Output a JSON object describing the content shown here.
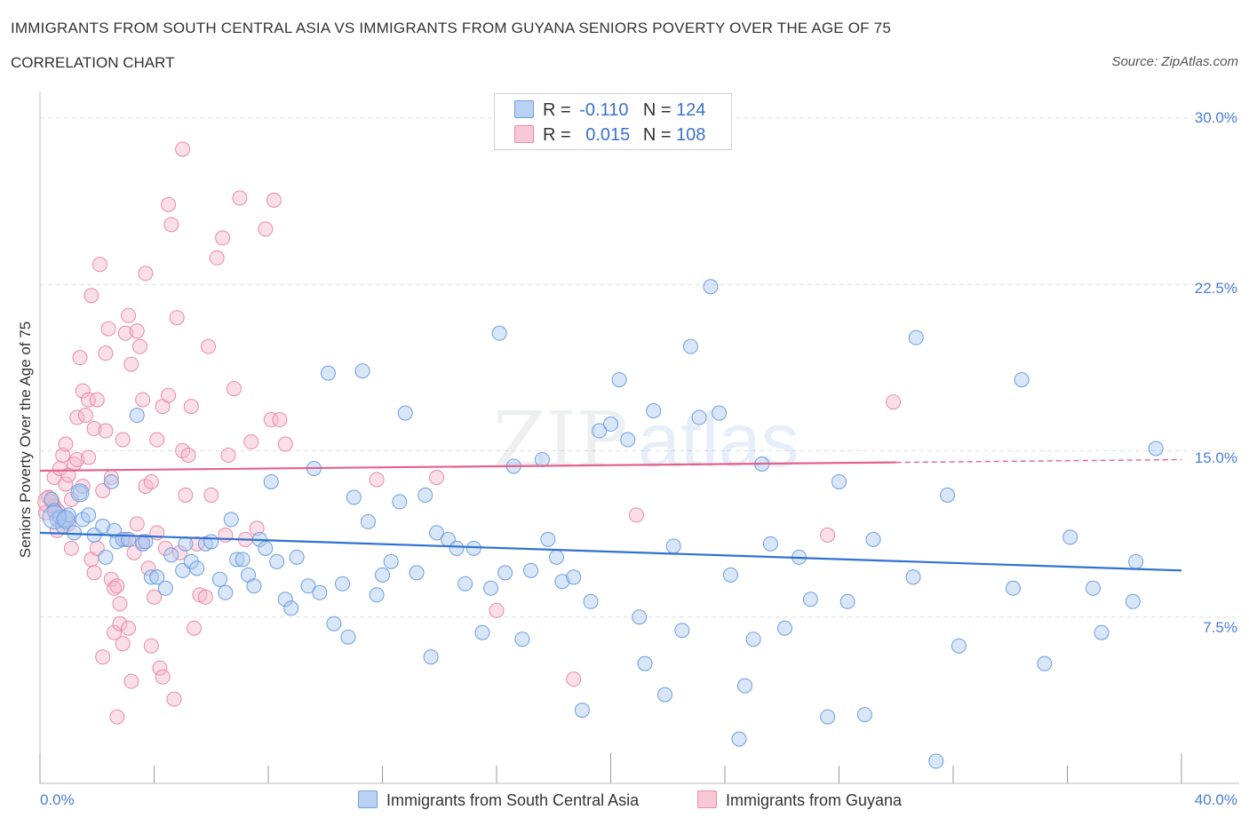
{
  "header": {
    "title": "IMMIGRANTS FROM SOUTH CENTRAL ASIA VS IMMIGRANTS FROM GUYANA SENIORS POVERTY OVER THE AGE OF 75",
    "subtitle": "CORRELATION CHART",
    "source": "Source: ZipAtlas.com"
  },
  "legend": {
    "rows": [
      {
        "r_label": "R =",
        "r_value": "-0.110",
        "n_label": "N =",
        "n_value": "124"
      },
      {
        "r_label": "R =",
        "r_value": "0.015",
        "n_label": "N =",
        "n_value": "108"
      }
    ],
    "bottom": [
      "Immigrants from South Central Asia",
      "Immigrants from Guyana"
    ]
  },
  "axes": {
    "ylabel": "Seniors Poverty Over the Age of 75",
    "yticks": [
      "30.0%",
      "22.5%",
      "15.0%",
      "7.5%"
    ],
    "xticks": [
      "0.0%",
      "40.0%"
    ]
  },
  "watermark": {
    "part1": "ZIP",
    "part2": "atlas"
  },
  "colors": {
    "blue_fill": "#a9c8f0",
    "blue_stroke": "#6d9fe0",
    "blue_line": "#2f72d0",
    "pink_fill": "#f5b8cb",
    "pink_stroke": "#ea8aa8",
    "pink_line": "#e3628e",
    "axis_text": "#4a7fd4",
    "grid": "#e0e0e0"
  },
  "chart_data": {
    "type": "scatter",
    "title": "IMMIGRANTS FROM SOUTH CENTRAL ASIA VS IMMIGRANTS FROM GUYANA SENIORS POVERTY OVER THE AGE OF 75",
    "xlabel": "",
    "ylabel": "Seniors Poverty Over the Age of 75",
    "xlim": [
      0,
      40
    ],
    "ylim": [
      0,
      30
    ],
    "grid": true,
    "legend_position": "top-center",
    "series": [
      {
        "name": "Immigrants from South Central Asia",
        "R": -0.11,
        "N": 124,
        "trend": {
          "x": [
            0,
            40
          ],
          "y": [
            11.3,
            9.6
          ]
        },
        "points": [
          [
            0.4,
            12.8
          ],
          [
            0.5,
            12.3
          ],
          [
            0.6,
            11.9
          ],
          [
            0.7,
            12.0
          ],
          [
            0.8,
            11.6
          ],
          [
            0.9,
            11.9
          ],
          [
            1.0,
            12.1
          ],
          [
            1.2,
            11.3
          ],
          [
            1.4,
            13.1
          ],
          [
            1.5,
            11.9
          ],
          [
            1.7,
            12.1
          ],
          [
            1.9,
            11.2
          ],
          [
            2.2,
            11.6
          ],
          [
            2.3,
            10.2
          ],
          [
            2.5,
            13.6
          ],
          [
            2.6,
            11.4
          ],
          [
            2.7,
            10.9
          ],
          [
            2.9,
            11.0
          ],
          [
            3.1,
            11.0
          ],
          [
            3.4,
            16.6
          ],
          [
            3.6,
            10.8
          ],
          [
            3.7,
            10.9
          ],
          [
            3.9,
            9.3
          ],
          [
            4.1,
            9.3
          ],
          [
            4.4,
            8.8
          ],
          [
            4.6,
            10.3
          ],
          [
            5.0,
            9.6
          ],
          [
            5.1,
            10.8
          ],
          [
            5.3,
            10.0
          ],
          [
            5.5,
            9.7
          ],
          [
            5.8,
            10.8
          ],
          [
            6.0,
            10.9
          ],
          [
            6.3,
            9.2
          ],
          [
            6.5,
            8.6
          ],
          [
            6.7,
            11.9
          ],
          [
            6.9,
            10.1
          ],
          [
            7.1,
            10.1
          ],
          [
            7.3,
            9.4
          ],
          [
            7.5,
            8.9
          ],
          [
            7.7,
            11.0
          ],
          [
            7.9,
            10.6
          ],
          [
            8.1,
            13.6
          ],
          [
            8.3,
            10.0
          ],
          [
            8.6,
            8.3
          ],
          [
            8.8,
            7.9
          ],
          [
            9.0,
            10.2
          ],
          [
            9.4,
            8.9
          ],
          [
            9.6,
            14.2
          ],
          [
            9.8,
            8.6
          ],
          [
            10.1,
            18.5
          ],
          [
            10.3,
            7.2
          ],
          [
            10.6,
            9.0
          ],
          [
            10.8,
            6.6
          ],
          [
            11.0,
            12.9
          ],
          [
            11.3,
            18.6
          ],
          [
            11.5,
            11.8
          ],
          [
            11.8,
            8.5
          ],
          [
            12.0,
            9.4
          ],
          [
            12.3,
            10.0
          ],
          [
            12.6,
            12.7
          ],
          [
            12.8,
            16.7
          ],
          [
            13.2,
            9.5
          ],
          [
            13.5,
            13.0
          ],
          [
            13.7,
            5.7
          ],
          [
            13.9,
            11.3
          ],
          [
            14.3,
            11.0
          ],
          [
            14.6,
            10.6
          ],
          [
            14.9,
            9.0
          ],
          [
            15.2,
            10.6
          ],
          [
            15.5,
            6.8
          ],
          [
            15.8,
            8.8
          ],
          [
            16.1,
            20.3
          ],
          [
            16.3,
            9.5
          ],
          [
            16.6,
            14.3
          ],
          [
            16.9,
            6.5
          ],
          [
            17.2,
            9.6
          ],
          [
            17.6,
            14.6
          ],
          [
            17.8,
            11.0
          ],
          [
            18.1,
            10.2
          ],
          [
            18.3,
            9.1
          ],
          [
            18.7,
            9.3
          ],
          [
            19.0,
            3.3
          ],
          [
            19.3,
            8.2
          ],
          [
            19.6,
            15.9
          ],
          [
            20.0,
            16.2
          ],
          [
            20.3,
            18.2
          ],
          [
            20.6,
            15.5
          ],
          [
            21.0,
            7.5
          ],
          [
            21.2,
            5.4
          ],
          [
            21.5,
            16.8
          ],
          [
            21.9,
            4.0
          ],
          [
            22.2,
            10.7
          ],
          [
            22.5,
            6.9
          ],
          [
            22.8,
            19.7
          ],
          [
            23.1,
            16.5
          ],
          [
            23.5,
            22.4
          ],
          [
            23.8,
            16.7
          ],
          [
            24.2,
            9.4
          ],
          [
            24.5,
            2.0
          ],
          [
            24.7,
            4.4
          ],
          [
            25.0,
            6.5
          ],
          [
            25.3,
            14.4
          ],
          [
            25.6,
            10.8
          ],
          [
            26.1,
            7.0
          ],
          [
            26.6,
            10.2
          ],
          [
            27.0,
            8.3
          ],
          [
            27.6,
            3.0
          ],
          [
            28.0,
            13.6
          ],
          [
            28.3,
            8.2
          ],
          [
            28.9,
            3.1
          ],
          [
            29.2,
            11.0
          ],
          [
            30.6,
            9.3
          ],
          [
            30.7,
            20.1
          ],
          [
            31.4,
            1.0
          ],
          [
            31.8,
            13.0
          ],
          [
            32.2,
            6.2
          ],
          [
            34.1,
            8.8
          ],
          [
            34.4,
            18.2
          ],
          [
            35.2,
            5.4
          ],
          [
            36.1,
            11.1
          ],
          [
            36.9,
            8.8
          ],
          [
            37.2,
            6.8
          ],
          [
            38.3,
            8.2
          ],
          [
            38.4,
            10.0
          ],
          [
            39.1,
            15.1
          ]
        ]
      },
      {
        "name": "Immigrants from Guyana",
        "R": 0.015,
        "N": 108,
        "trend": {
          "x": [
            0,
            40
          ],
          "y": [
            14.1,
            14.6
          ],
          "solid_until_x": 30.0
        },
        "points": [
          [
            0.2,
            12.2
          ],
          [
            0.3,
            12.9
          ],
          [
            0.4,
            12.7
          ],
          [
            0.5,
            13.8
          ],
          [
            0.5,
            12.5
          ],
          [
            0.6,
            11.4
          ],
          [
            0.7,
            14.2
          ],
          [
            0.7,
            12.0
          ],
          [
            0.8,
            14.8
          ],
          [
            0.9,
            15.3
          ],
          [
            0.9,
            13.5
          ],
          [
            1.0,
            13.9
          ],
          [
            1.0,
            11.7
          ],
          [
            1.1,
            12.8
          ],
          [
            1.1,
            10.6
          ],
          [
            1.2,
            14.4
          ],
          [
            1.3,
            14.6
          ],
          [
            1.3,
            16.5
          ],
          [
            1.4,
            19.2
          ],
          [
            1.5,
            17.7
          ],
          [
            1.5,
            13.4
          ],
          [
            1.6,
            16.6
          ],
          [
            1.7,
            17.3
          ],
          [
            1.7,
            14.7
          ],
          [
            1.8,
            22.0
          ],
          [
            1.8,
            10.1
          ],
          [
            1.9,
            9.5
          ],
          [
            1.9,
            16.0
          ],
          [
            2.0,
            10.6
          ],
          [
            2.0,
            17.3
          ],
          [
            2.1,
            23.4
          ],
          [
            2.2,
            13.2
          ],
          [
            2.2,
            5.7
          ],
          [
            2.3,
            15.9
          ],
          [
            2.3,
            19.4
          ],
          [
            2.4,
            20.5
          ],
          [
            2.5,
            9.2
          ],
          [
            2.5,
            13.8
          ],
          [
            2.6,
            8.8
          ],
          [
            2.6,
            6.8
          ],
          [
            2.7,
            8.9
          ],
          [
            2.7,
            3.0
          ],
          [
            2.8,
            8.1
          ],
          [
            2.8,
            7.2
          ],
          [
            2.9,
            6.3
          ],
          [
            2.9,
            15.5
          ],
          [
            3.0,
            20.3
          ],
          [
            3.0,
            11.0
          ],
          [
            3.1,
            21.1
          ],
          [
            3.1,
            7.0
          ],
          [
            3.2,
            18.9
          ],
          [
            3.2,
            4.6
          ],
          [
            3.3,
            10.4
          ],
          [
            3.4,
            20.4
          ],
          [
            3.4,
            11.7
          ],
          [
            3.5,
            19.7
          ],
          [
            3.6,
            17.3
          ],
          [
            3.6,
            10.9
          ],
          [
            3.7,
            13.4
          ],
          [
            3.7,
            23.0
          ],
          [
            3.8,
            9.7
          ],
          [
            3.9,
            6.2
          ],
          [
            3.9,
            13.6
          ],
          [
            4.0,
            8.4
          ],
          [
            4.1,
            15.5
          ],
          [
            4.1,
            11.3
          ],
          [
            4.2,
            5.2
          ],
          [
            4.3,
            4.8
          ],
          [
            4.3,
            17.0
          ],
          [
            4.4,
            10.6
          ],
          [
            4.5,
            17.5
          ],
          [
            4.5,
            26.1
          ],
          [
            4.6,
            25.2
          ],
          [
            4.7,
            3.8
          ],
          [
            4.8,
            21.0
          ],
          [
            4.9,
            10.4
          ],
          [
            5.0,
            15.0
          ],
          [
            5.0,
            28.6
          ],
          [
            5.1,
            13.0
          ],
          [
            5.2,
            14.8
          ],
          [
            5.3,
            17.0
          ],
          [
            5.4,
            7.0
          ],
          [
            5.5,
            10.8
          ],
          [
            5.6,
            8.5
          ],
          [
            5.8,
            8.4
          ],
          [
            5.9,
            19.7
          ],
          [
            6.0,
            13.0
          ],
          [
            6.2,
            23.7
          ],
          [
            6.4,
            24.6
          ],
          [
            6.5,
            11.2
          ],
          [
            6.6,
            14.8
          ],
          [
            6.8,
            17.8
          ],
          [
            7.0,
            26.4
          ],
          [
            7.2,
            11.0
          ],
          [
            7.4,
            15.4
          ],
          [
            7.6,
            11.5
          ],
          [
            7.9,
            25.0
          ],
          [
            8.1,
            16.4
          ],
          [
            8.2,
            26.3
          ],
          [
            8.4,
            16.4
          ],
          [
            8.6,
            15.3
          ],
          [
            11.8,
            13.7
          ],
          [
            13.9,
            13.8
          ],
          [
            16.0,
            7.8
          ],
          [
            18.7,
            4.7
          ],
          [
            20.9,
            12.1
          ],
          [
            27.6,
            11.2
          ],
          [
            29.9,
            17.2
          ]
        ]
      }
    ]
  }
}
